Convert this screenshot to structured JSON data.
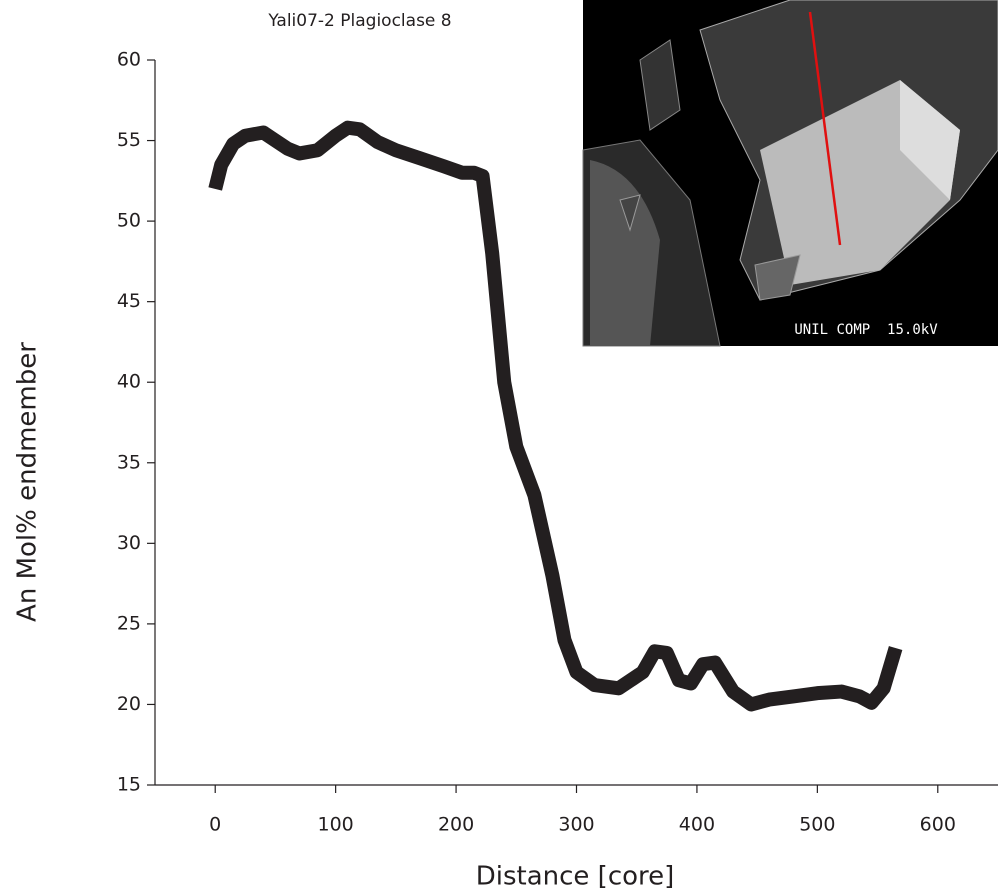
{
  "chart_data": {
    "type": "line",
    "title": "Yali07-2 Plagioclase 8",
    "x_label": "Distance [core]",
    "y_label": "An Mol% endmember",
    "x": [
      0,
      5,
      15,
      25,
      40,
      50,
      60,
      70,
      85,
      100,
      110,
      120,
      135,
      150,
      170,
      190,
      205,
      215,
      222,
      230,
      240,
      250,
      265,
      280,
      290,
      300,
      315,
      335,
      355,
      365,
      375,
      385,
      395,
      405,
      415,
      430,
      445,
      460,
      480,
      500,
      520,
      535,
      545,
      555,
      565
    ],
    "series": [
      {
        "color": "#231f20",
        "values": [
          52,
          53.5,
          54.8,
          55.3,
          55.5,
          55,
          54.5,
          54.2,
          54.4,
          55.3,
          55.8,
          55.7,
          54.9,
          54.4,
          53.9,
          53.4,
          53,
          53,
          52.8,
          48,
          40,
          36,
          33,
          28,
          24,
          22,
          21.2,
          21,
          22,
          23.3,
          23.2,
          21.5,
          21.3,
          22.5,
          22.6,
          20.8,
          20,
          20.3,
          20.5,
          20.7,
          20.8,
          20.5,
          20.1,
          21,
          23.5
        ]
      }
    ],
    "xlim": [
      -50,
      650
    ],
    "xticks": [
      0,
      100,
      200,
      300,
      400,
      500,
      600
    ],
    "ylim": [
      15,
      60
    ],
    "yticks": [
      15,
      20,
      25,
      30,
      35,
      40,
      45,
      50,
      55,
      60
    ],
    "grid": false
  },
  "inset": {
    "caption": "UNIL COMP  15.0kV"
  }
}
